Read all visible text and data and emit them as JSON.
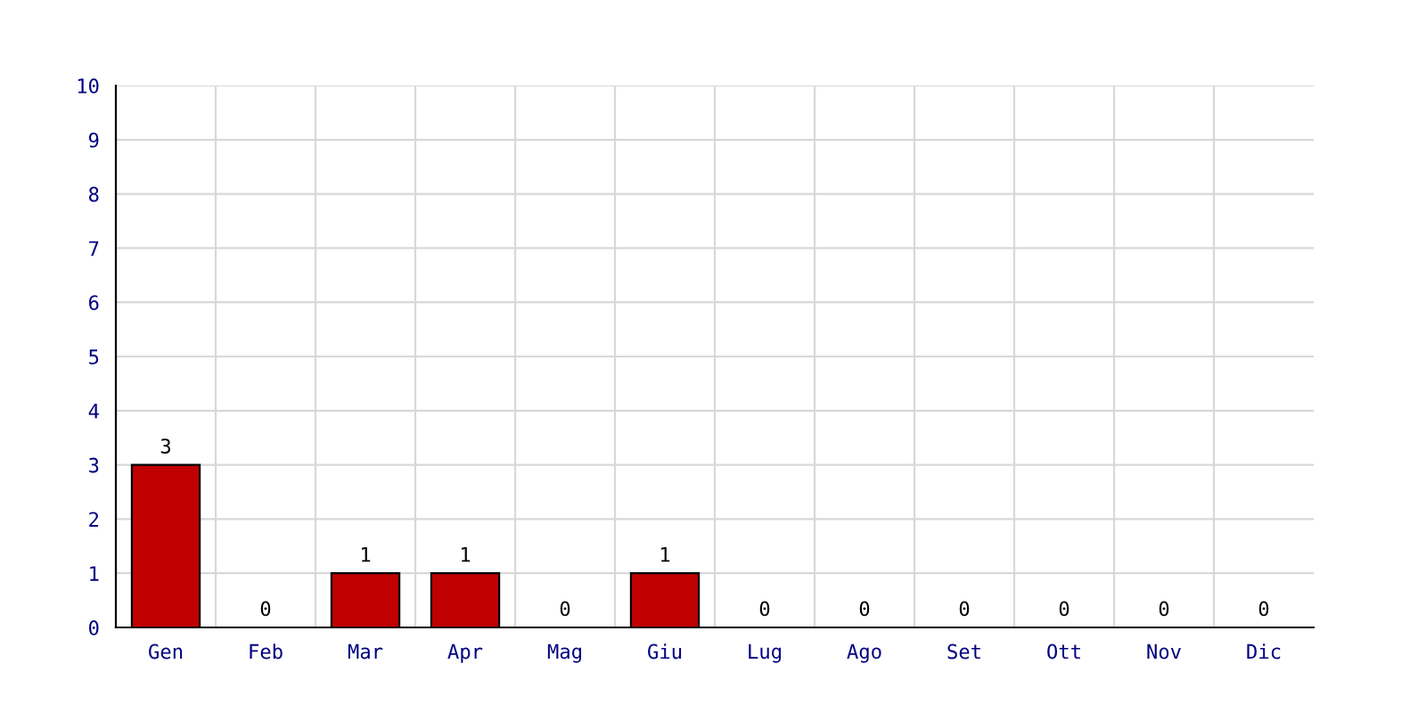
{
  "chart_data": {
    "type": "bar",
    "categories": [
      "Gen",
      "Feb",
      "Mar",
      "Apr",
      "Mag",
      "Giu",
      "Lug",
      "Ago",
      "Set",
      "Ott",
      "Nov",
      "Dic"
    ],
    "values": [
      3,
      0,
      1,
      1,
      0,
      1,
      0,
      0,
      0,
      0,
      0,
      0
    ],
    "color": "#c00000",
    "ylim": [
      0,
      10
    ],
    "yticks": [
      0,
      1,
      2,
      3,
      4,
      5,
      6,
      7,
      8,
      9,
      10
    ],
    "grid": true,
    "data_labels": true
  }
}
